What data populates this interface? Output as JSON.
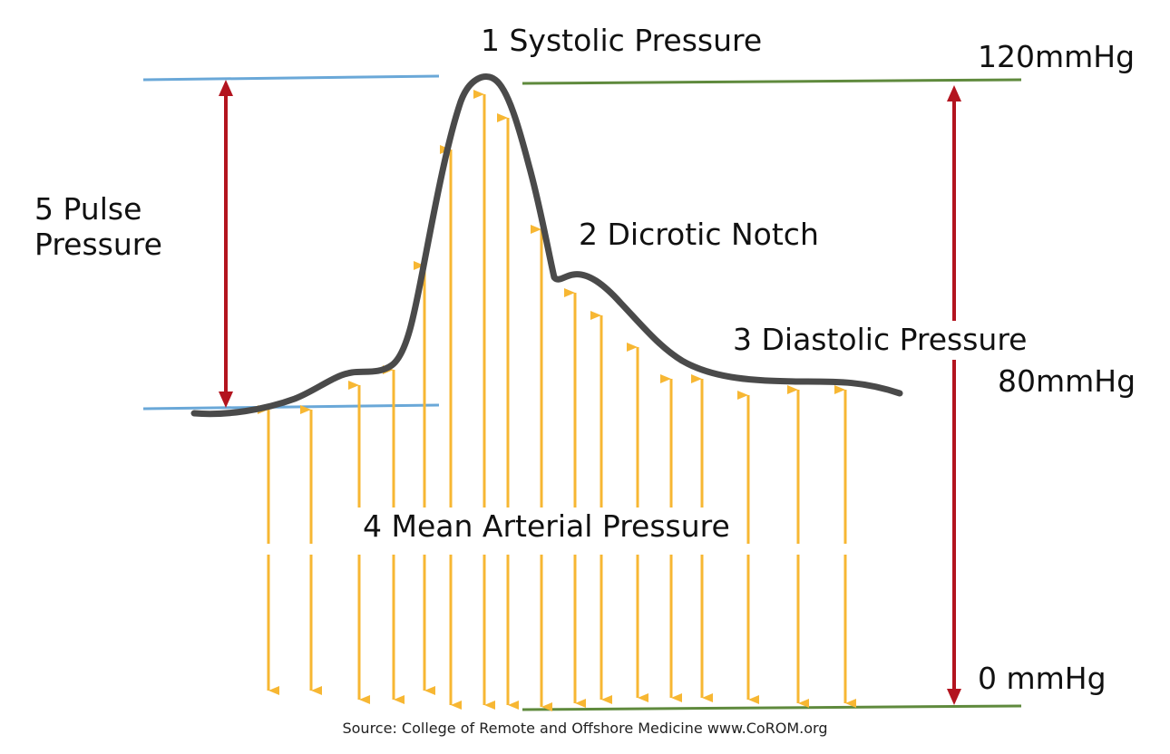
{
  "labels": {
    "systolic": "1 Systolic Pressure",
    "dicrotic": "2 Dicrotic Notch",
    "diastolic": "3 Diastolic Pressure",
    "mean": "4 Mean Arterial Pressure",
    "pulse": "5 Pulse\nPressure"
  },
  "scale": {
    "p120": "120mmHg",
    "p80": "80mmHg",
    "p0": "0 mmHg"
  },
  "source": "Source: College of Remote and Offshore Medicine www.CoROM.org",
  "colors": {
    "waveform": "#4a4a4a",
    "yellow_arrows": "#f7b733",
    "red_arrows": "#b3141f",
    "blue_lines": "#6aa8d8",
    "green_lines": "#5f8a3d"
  }
}
